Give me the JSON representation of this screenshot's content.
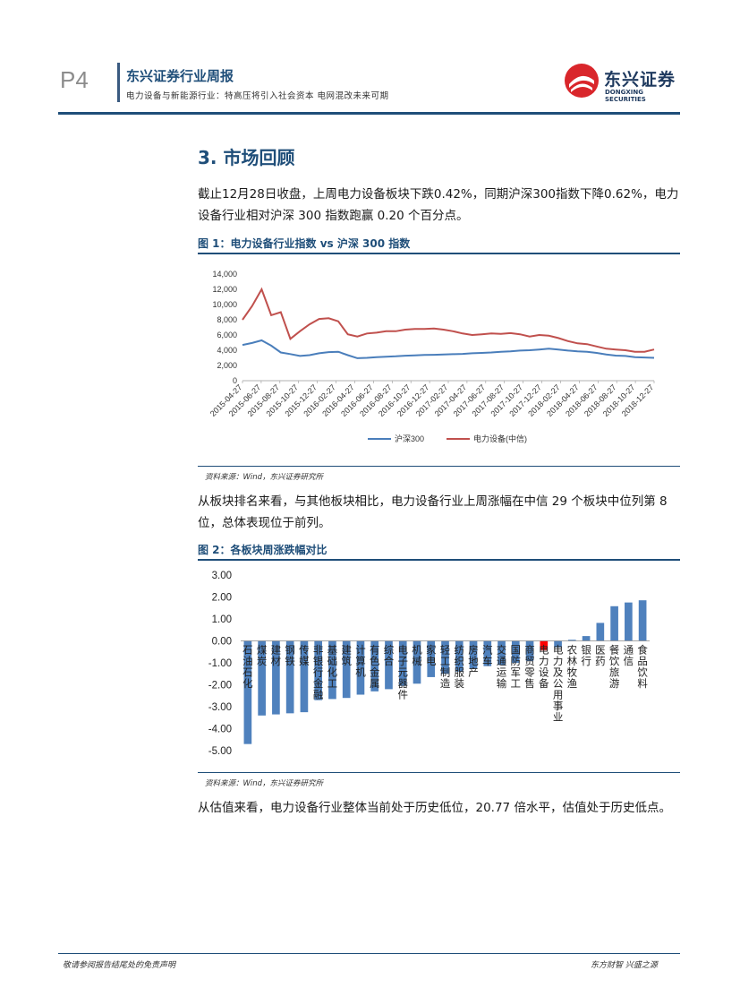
{
  "header": {
    "page_number": "P4",
    "report_title": "东兴证券行业周报",
    "report_subtitle": "电力设备与新能源行业：特高压将引入社会资本 电网混改未来可期",
    "logo_cn": "东兴证券",
    "logo_en": "DONGXING SECURITIES"
  },
  "section": {
    "heading": "3. 市场回顾",
    "para1": "截止12月28日收盘，上周电力设备板块下跌0.42%，同期沪深300指数下降0.62%，电力设备行业相对沪深 300 指数跑赢 0.20 个百分点。",
    "para2": "从板块排名来看，与其他板块相比，电力设备行业上周涨幅在中信 29 个板块中位列第 8 位，总体表现位于前列。",
    "para3": "从估值来看，电力设备行业整体当前处于历史低位，20.77 倍水平，估值处于历史低点。"
  },
  "figure1": {
    "caption": "图 1：电力设备行业指数 vs 沪深 300 指数",
    "source": "资料来源：Wind，东兴证券研究所"
  },
  "figure2": {
    "caption": "图 2：各板块周涨跌幅对比",
    "source": "资料来源：Wind，东兴证券研究所"
  },
  "footer": {
    "left": "敬请参阅报告结尾处的免责声明",
    "right": "东方财智 兴盛之源"
  },
  "colors": {
    "brand": "#1f4e79",
    "series_hs300": "#4a7ebb",
    "series_power": "#c0504d",
    "bar_default": "#4f81bd",
    "bar_highlight": "#ff0000",
    "logo_red": "#d9262b"
  },
  "chart_data": [
    {
      "type": "line",
      "title": "",
      "x_ticks": [
        "2015-04-27",
        "2015-06-27",
        "2015-08-27",
        "2015-10-27",
        "2015-12-27",
        "2016-02-27",
        "2016-04-27",
        "2016-06-27",
        "2016-08-27",
        "2016-10-27",
        "2016-12-27",
        "2017-02-27",
        "2017-04-27",
        "2017-06-27",
        "2017-08-27",
        "2017-10-27",
        "2017-12-27",
        "2018-02-27",
        "2018-04-27",
        "2018-06-27",
        "2018-08-27",
        "2018-10-27",
        "2018-12-27"
      ],
      "ylim": [
        0,
        14000
      ],
      "y_ticks": [
        0,
        2000,
        4000,
        6000,
        8000,
        10000,
        12000,
        14000
      ],
      "y_tick_labels": [
        "0",
        "2,000",
        "4,000",
        "6,000",
        "8,000",
        "10,000",
        "12,000",
        "14,000"
      ],
      "series": [
        {
          "name": "沪深300",
          "color": "#4a7ebb",
          "values": [
            4700,
            4950,
            5300,
            4600,
            3700,
            3500,
            3250,
            3350,
            3600,
            3750,
            3800,
            3350,
            2950,
            3000,
            3100,
            3150,
            3200,
            3280,
            3320,
            3380,
            3400,
            3450,
            3480,
            3520,
            3600,
            3650,
            3700,
            3800,
            3850,
            3950,
            4000,
            4100,
            4200,
            4100,
            3950,
            3850,
            3800,
            3650,
            3450,
            3300,
            3250,
            3100,
            3050,
            3000
          ]
        },
        {
          "name": "电力设备(中信)",
          "color": "#c0504d",
          "values": [
            8000,
            9800,
            12000,
            8600,
            9000,
            5500,
            6500,
            7400,
            8100,
            8200,
            7800,
            6100,
            5800,
            6200,
            6300,
            6500,
            6500,
            6700,
            6800,
            6800,
            6850,
            6700,
            6500,
            6200,
            6000,
            6100,
            6200,
            6150,
            6250,
            6100,
            5800,
            6000,
            5900,
            5600,
            5200,
            4900,
            4800,
            4500,
            4200,
            4100,
            4000,
            3800,
            3800,
            4100
          ]
        }
      ]
    },
    {
      "type": "bar",
      "title": "",
      "ylim": [
        -5.0,
        3.0
      ],
      "y_ticks": [
        -5.0,
        -4.0,
        -3.0,
        -2.0,
        -1.0,
        0.0,
        1.0,
        2.0,
        3.0
      ],
      "y_tick_labels": [
        "-5.00",
        "-4.00",
        "-3.00",
        "-2.00",
        "-1.00",
        "0.00",
        "1.00",
        "2.00",
        "3.00"
      ],
      "categories": [
        "石油石化",
        "煤炭",
        "建材",
        "钢铁",
        "传媒",
        "非银行金融",
        "基础化工",
        "建筑",
        "计算机",
        "有色金属",
        "综合",
        "电子元器件",
        "机械",
        "家电",
        "轻工制造",
        "纺织服装",
        "房地产",
        "汽车",
        "交通运输",
        "国防军工",
        "商贸零售",
        "电力设备",
        "电力及公用事业",
        "农林牧渔",
        "银行",
        "医药",
        "餐饮旅游",
        "通信",
        "食品饮料"
      ],
      "values": [
        -4.7,
        -3.4,
        -3.35,
        -3.3,
        -3.25,
        -2.7,
        -2.65,
        -2.6,
        -2.45,
        -2.3,
        -2.2,
        -2.05,
        -1.95,
        -1.65,
        -1.5,
        -1.4,
        -1.25,
        -1.15,
        -1.1,
        -1.0,
        -0.9,
        -0.42,
        -0.3,
        0.05,
        0.22,
        0.82,
        1.58,
        1.75,
        1.85
      ],
      "highlight": "电力设备"
    }
  ]
}
